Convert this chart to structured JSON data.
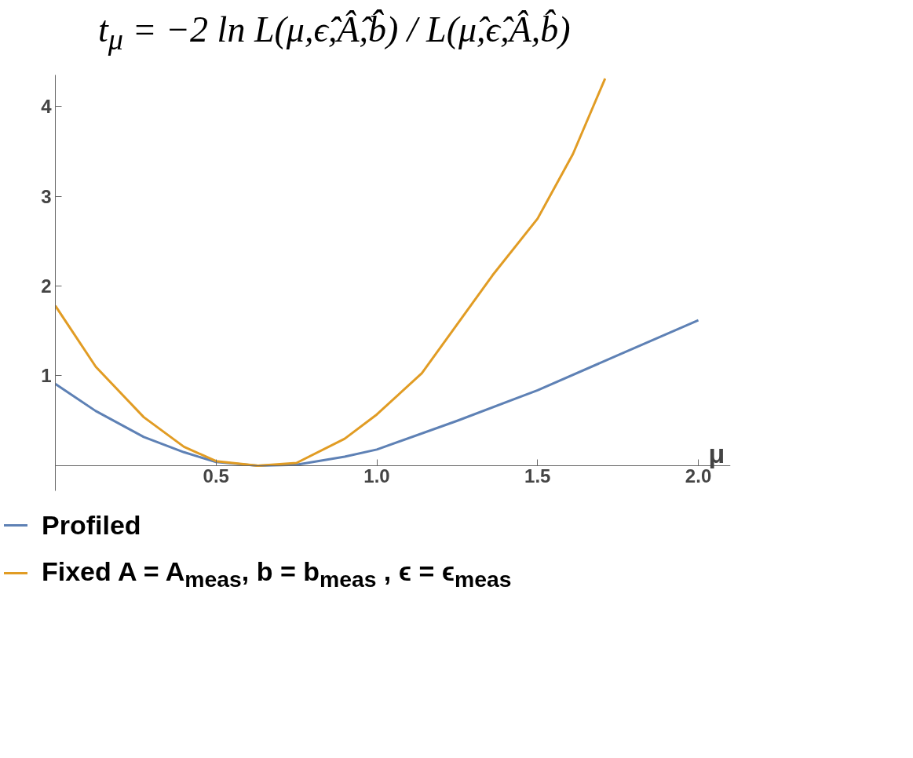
{
  "chart_data": {
    "type": "line",
    "title": "t$_{μ}$ = −2 ln L(μ,ϵ̂̂,Â̂,b̂̂) / L(μ̂,ϵ̂,Â,b̂)",
    "xlabel": "μ",
    "xlim": [
      0,
      2.1
    ],
    "ylim": [
      -0.28,
      4.35
    ],
    "xticks": [
      {
        "value": 0,
        "label": null
      },
      0.5,
      {
        "value": 1.0,
        "label": "1.0"
      },
      1.5,
      {
        "value": 2.0,
        "label": "2.0"
      }
    ],
    "yticks": [
      1,
      2,
      3,
      4
    ],
    "legend": "bottom",
    "series": [
      {
        "name": "Profiled",
        "color": "#5e81b5",
        "x": [
          0,
          0.125,
          0.275,
          0.4,
          0.5,
          0.63,
          0.75,
          0.9,
          1.0,
          1.25,
          1.5,
          1.75,
          2.0
        ],
        "values": [
          0.91,
          0.61,
          0.32,
          0.15,
          0.04,
          0,
          0.01,
          0.1,
          0.18,
          0.5,
          0.84,
          1.23,
          1.62
        ]
      },
      {
        "name": "Fixed A = A$_{meas}$, b = b$_{meas}$ , ϵ = ϵ$_{meas}$",
        "color": "#e19c24",
        "x": [
          0,
          0.126,
          0.275,
          0.4,
          0.5,
          0.63,
          0.75,
          0.9,
          1.0,
          1.14,
          1.36,
          1.5,
          1.61,
          1.71
        ],
        "values": [
          1.78,
          1.1,
          0.54,
          0.21,
          0.05,
          0,
          0.03,
          0.3,
          0.57,
          1.03,
          2.12,
          2.75,
          3.47,
          4.31
        ]
      }
    ]
  }
}
